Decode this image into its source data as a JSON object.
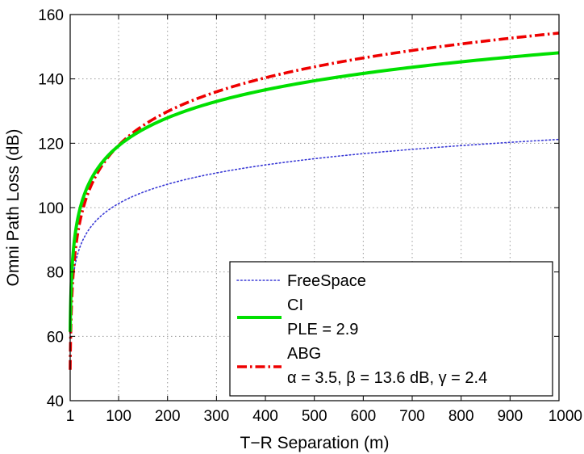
{
  "chart_data": {
    "type": "line",
    "title": "",
    "xlabel": "T−R Separation (m)",
    "ylabel": "Omni Path Loss (dB)",
    "xlim": [
      1,
      1000
    ],
    "ylim": [
      40,
      160
    ],
    "xticks": [
      1,
      100,
      200,
      300,
      400,
      500,
      600,
      700,
      800,
      900,
      1000
    ],
    "xtick_labels": [
      "1",
      "100",
      "200",
      "300",
      "400",
      "500",
      "600",
      "700",
      "800",
      "900",
      "1000"
    ],
    "yticks": [
      40,
      60,
      80,
      100,
      120,
      140,
      160
    ],
    "ytick_labels": [
      "40",
      "60",
      "80",
      "100",
      "120",
      "140",
      "160"
    ],
    "grid": true,
    "legend_position": "bottom-right",
    "x": [
      1,
      2,
      5,
      10,
      20,
      50,
      100,
      150,
      200,
      300,
      400,
      500,
      600,
      700,
      800,
      900,
      1000
    ],
    "series": [
      {
        "name": "FreeSpace",
        "style": "dotted",
        "color": "#3a3ad6",
        "values": [
          61.4,
          67.4,
          75.4,
          81.4,
          87.4,
          95.4,
          101.4,
          104.9,
          107.4,
          110.9,
          113.4,
          115.4,
          117.0,
          118.3,
          119.5,
          120.5,
          121.4
        ]
      },
      {
        "name": "CI",
        "annotation": "PLE = 2.9",
        "style": "solid",
        "color": "#00e000",
        "values": [
          61.4,
          70.1,
          81.7,
          90.4,
          99.2,
          110.7,
          119.4,
          124.5,
          128.1,
          133.2,
          136.8,
          139.6,
          141.9,
          143.9,
          145.5,
          147.0,
          148.4
        ]
      },
      {
        "name": "ABG",
        "annotation": "α = 3.5, β = 13.6 dB, γ = 2.4",
        "style": "dash-dot",
        "color": "#ee0000",
        "values": [
          49.6,
          60.1,
          74.1,
          84.6,
          95.2,
          109.1,
          119.6,
          125.8,
          130.2,
          136.3,
          140.7,
          144.1,
          146.9,
          149.2,
          151.2,
          153.0,
          154.6
        ]
      }
    ]
  }
}
